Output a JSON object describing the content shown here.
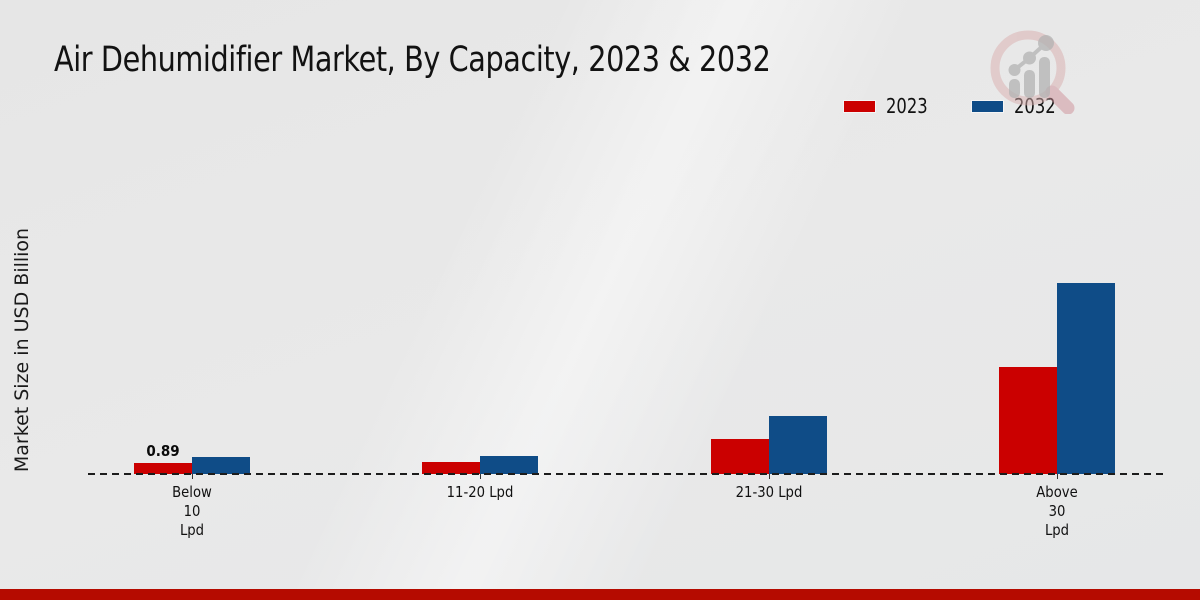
{
  "page": {
    "title": "Air Dehumidifier Market, By Capacity, 2023 & 2032"
  },
  "chart_data": {
    "type": "bar",
    "title": "Air Dehumidifier Market, By Capacity, 2023 & 2032",
    "ylabel": "Market Size in USD Billion",
    "xlabel": "",
    "categories": [
      "Below 10 Lpd",
      "11-20 Lpd",
      "21-30 Lpd",
      "Above 30 Lpd"
    ],
    "category_label_lines": [
      [
        "Below",
        "10",
        "Lpd"
      ],
      [
        "11-20 Lpd"
      ],
      [
        "21-30 Lpd"
      ],
      [
        "Above",
        "30",
        "Lpd"
      ]
    ],
    "series": [
      {
        "name": "2023",
        "color": "#cb0000",
        "values": [
          0.89,
          1.0,
          2.9,
          8.9
        ]
      },
      {
        "name": "2032",
        "color": "#0f4c87",
        "values": [
          1.4,
          1.5,
          4.8,
          15.9
        ]
      }
    ],
    "bar_value_labels": [
      {
        "series": "2023",
        "category": "Below 10 Lpd",
        "text": "0.89"
      }
    ],
    "ylim": [
      0,
      17
    ],
    "grid": false,
    "legend_position": "top-right",
    "baseline_style": "dashed"
  },
  "legend": {
    "items": [
      {
        "label": "2023",
        "color": "#cb0000"
      },
      {
        "label": "2032",
        "color": "#0f4c87"
      }
    ]
  },
  "logo": {
    "name": "magnifier-bar-chart-logo",
    "ring_color": "#dcb6b6",
    "bar_color": "#b3b3b3"
  },
  "footer": {
    "strip_color": "#b50b00"
  }
}
